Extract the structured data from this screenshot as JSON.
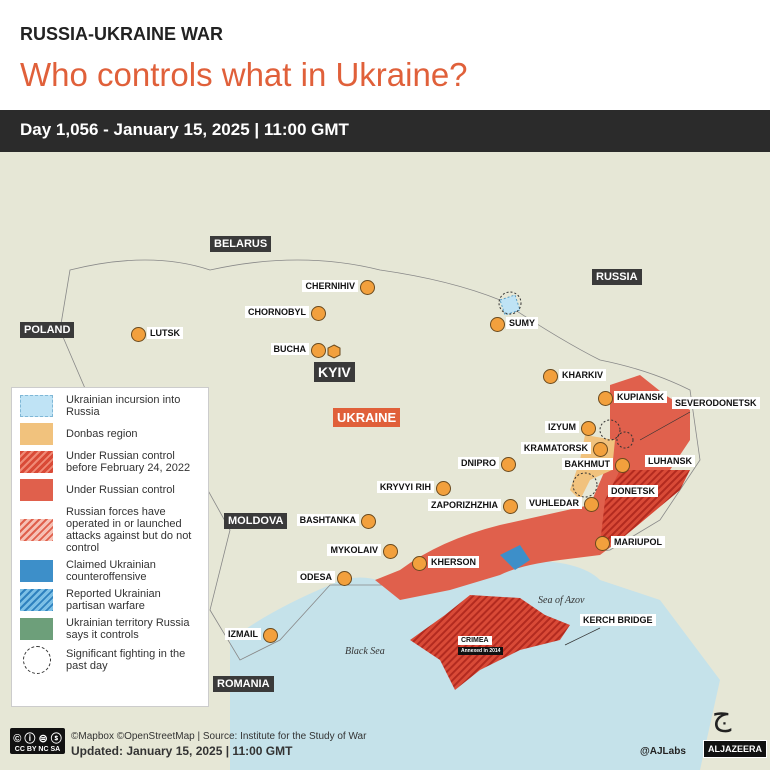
{
  "header": {
    "kicker": "RUSSIA-UKRAINE WAR",
    "title": "Who controls what in Ukraine?",
    "subbar": "Day 1,056 - January 15, 2025  |  11:00 GMT"
  },
  "colors": {
    "accent": "#e0603a",
    "russian_control": "#e0604c",
    "pre2022": "#c93a2b",
    "donbas": "#f1c27d",
    "incursion": "#bfe3f5",
    "counteroffensive": "#3d8fc9",
    "green": "#6d9f7a",
    "sea": "#c5e2ea"
  },
  "countries": {
    "belarus": "BELARUS",
    "russia": "RUSSIA",
    "poland": "POLAND",
    "ukraine": "UKRAINE",
    "moldova": "MOLDOVA",
    "romania": "ROMANIA"
  },
  "seas": {
    "azov": "Sea of Azov",
    "black": "Black Sea"
  },
  "capital": "KYIV",
  "cities": [
    {
      "name": "CHERNIHIV",
      "side": "left"
    },
    {
      "name": "CHORNOBYL",
      "side": "left"
    },
    {
      "name": "LUTSK",
      "side": "right"
    },
    {
      "name": "BUCHA",
      "side": "left"
    },
    {
      "name": "SUMY",
      "side": "right"
    },
    {
      "name": "KHARKIV",
      "side": "right"
    },
    {
      "name": "KUPIANSK",
      "side": "right"
    },
    {
      "name": "IZYUM",
      "side": "left"
    },
    {
      "name": "KRAMATORSK",
      "side": "left"
    },
    {
      "name": "BAKHMUT",
      "side": "left"
    },
    {
      "name": "DNIPRO",
      "side": "left"
    },
    {
      "name": "KRYVYI RIH",
      "side": "left"
    },
    {
      "name": "ZAPORIZHZHIA",
      "side": "left"
    },
    {
      "name": "VUHLEDAR",
      "side": "left"
    },
    {
      "name": "BASHTANKA",
      "side": "left"
    },
    {
      "name": "MYKOLAIV",
      "side": "left"
    },
    {
      "name": "KHERSON",
      "side": "right"
    },
    {
      "name": "MARIUPOL",
      "side": "right"
    },
    {
      "name": "ODESA",
      "side": "left"
    },
    {
      "name": "IZMAIL",
      "side": "left"
    }
  ],
  "labels": {
    "severodonetsk": "SEVERODONETSK",
    "luhansk": "LUHANSK",
    "donetsk": "DONETSK",
    "kerch": "KERCH BRIDGE",
    "crimea": "CRIMEA",
    "crimea_note": "Annexed in 2014"
  },
  "legend": [
    {
      "label": "Ukrainian incursion into Russia",
      "swatch": "incursion"
    },
    {
      "label": "Donbas region",
      "swatch": "donbas"
    },
    {
      "label": "Under Russian control before February 24, 2022",
      "swatch": "hatch-red"
    },
    {
      "label": "Under Russian control",
      "swatch": "red"
    },
    {
      "label": "Russian forces have operated in or launched attacks against but do not control",
      "swatch": "hatch-light"
    },
    {
      "label": "Claimed Ukrainian counteroffensive",
      "swatch": "blue"
    },
    {
      "label": "Reported Ukrainian partisan warfare",
      "swatch": "hatch-blue"
    },
    {
      "label": "Ukrainian territory Russia says it controls",
      "swatch": "green"
    },
    {
      "label": "Significant fighting in the past day",
      "swatch": "dashed-circle"
    }
  ],
  "footer": {
    "license": "CC BY NC SA",
    "source": "©Mapbox ©OpenStreetMap | Source: Institute for the Study of War",
    "updated": "Updated: January 15, 2025  |  11:00 GMT",
    "handle": "@AJLabs",
    "brand": "ALJAZEERA"
  }
}
